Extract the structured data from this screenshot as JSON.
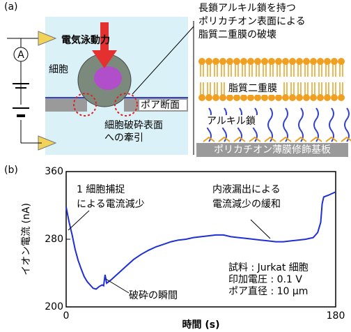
{
  "panel_a": {
    "label": "(a)",
    "ammeter": "A",
    "force": "電気泳動力",
    "cell": "細胞",
    "pore": "ポア断面",
    "traction": [
      "細胞破砕表面",
      "への牽引"
    ],
    "mechanism": [
      "長鎖アルキル鎖を持つ",
      "ポリカチオン表面による",
      "脂質二重膜の破壊"
    ],
    "bilayer": "脂質二重膜",
    "alkyl": "アルキル鎖",
    "substrate": "ポリカチオン薄膜修飾基板"
  },
  "chart_data": {
    "type": "line",
    "panel": "(b)",
    "x_label": "時間 (s)",
    "y_label": "イオン電流 (nA)",
    "xlim": [
      0,
      180
    ],
    "xticks": [
      0,
      180
    ],
    "ylim": [
      200,
      360
    ],
    "yticks": [
      200,
      280,
      360
    ],
    "color": "#1f2fd6",
    "x": [
      0,
      2,
      4,
      6,
      8,
      10,
      12,
      14,
      16,
      18,
      20,
      22,
      24,
      25,
      26,
      27,
      30,
      35,
      40,
      45,
      50,
      55,
      60,
      65,
      70,
      75,
      80,
      85,
      90,
      95,
      100,
      105,
      110,
      115,
      120,
      125,
      130,
      135,
      140,
      145,
      150,
      155,
      160,
      165,
      168,
      170,
      171,
      172,
      175,
      180
    ],
    "values": [
      318,
      300,
      285,
      268,
      255,
      245,
      236,
      230,
      226,
      222,
      221,
      224,
      226,
      225,
      238,
      228,
      232,
      240,
      248,
      256,
      262,
      267,
      271,
      274,
      277,
      279,
      280,
      282,
      283,
      284,
      285,
      285,
      283,
      282,
      281,
      280,
      279,
      278,
      277,
      277,
      278,
      279,
      280,
      282,
      288,
      300,
      322,
      330,
      332,
      336
    ],
    "annotations": [
      "1 細胞捕捉",
      "による電流減少",
      "内液漏出による",
      "電流減少の緩和",
      "破砕の瞬間",
      "試料 : Jurkat 細胞",
      "印加電圧 : 0.1 V",
      "ポア直径 : 10 μm"
    ]
  }
}
